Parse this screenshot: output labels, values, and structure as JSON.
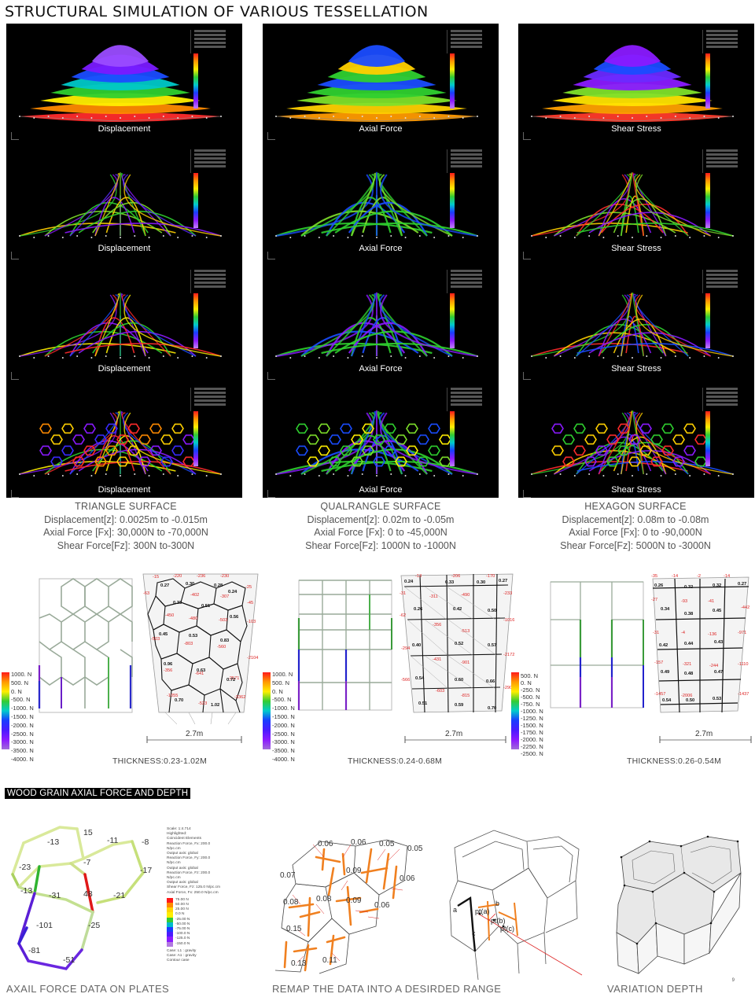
{
  "title": "STRUCTURAL SIMULATION OF VARIOUS TESSELLATION",
  "columns": [
    {
      "id": "triangle",
      "labels": [
        "Displacement",
        "Displacement",
        "Displacement",
        "Displacement"
      ],
      "surface_name": "TRIANGLE SURFACE",
      "displacement": "Displacement[z]: 0.0025m to -0.015m",
      "axial": "Axial Force [Fx]: 30,000N to -70,000N",
      "shear": "Shear Force[Fz]: 300N to-300N",
      "thickness": "THICKNESS:0.23-1.02M",
      "dimension": "2.7m",
      "legend": [
        "1000. N",
        "500. N",
        "0. N",
        "-500. N",
        "-1000. N",
        "-1500. N",
        "-2000. N",
        "-2500. N",
        "-3000. N",
        "-3500. N",
        "-4000. N"
      ]
    },
    {
      "id": "quad",
      "labels": [
        "Axial Force",
        "Axial Force",
        "Axial Force",
        "Axial Force"
      ],
      "surface_name": "QUALRANGLE SURFACE",
      "displacement": "Displacement[z]: 0.02m to -0.05m",
      "axial": "Axial Force [Fx]: 0 to -45,000N",
      "shear": "Shear Force[Fz]: 1000N to -1000N",
      "thickness": "THICKNESS:0.24-0.68M",
      "dimension": "2.7m",
      "legend": [
        "1000. N",
        "500. N",
        "0. N",
        "-500. N",
        "-1000. N",
        "-1500. N",
        "-2000. N",
        "-2500. N",
        "-3000. N",
        "-3500. N",
        "-4000. N"
      ]
    },
    {
      "id": "hexagon",
      "labels": [
        "Shear Stress",
        "Shear Stress",
        "Shear Stress",
        "Shear Stress"
      ],
      "surface_name": "HEXAGON SURFACE",
      "displacement": "Displacement[z]: 0.08m to -0.08m",
      "axial": "Axial Force [Fx]: 0 to -90,000N",
      "shear": "Shear Force[Fz]: 5000N to -3000N",
      "thickness": "THICKNESS:0.26-0.54M",
      "dimension": "2.7m",
      "legend": [
        "500. N",
        "0. N",
        "-250. N",
        "-500. N",
        "-750. N",
        "-1000. N",
        "-1250. N",
        "-1500. N",
        "-1750. N",
        "-2000. N",
        "-2250. N",
        "-2500. N"
      ]
    }
  ],
  "section_tag": "WOOD GRAIN AXIAL FORCE AND DEPTH",
  "axial_plate_values": [
    "-13",
    "15",
    "-11",
    "-8",
    "-23",
    "-7",
    "-17",
    "-13",
    "-31",
    "48",
    "-21",
    "-101",
    "-25",
    "-81",
    "-51"
  ],
  "axial_legend": {
    "header": [
      "Scale: 1:4.714",
      "Highlighted:",
      "Coincident Elements",
      "Reaction Force, Fx: 200.0 N/pc.cm",
      "Output axis: global",
      "Reaction Force, Fy: 200.0 N/pc.cm",
      "Output axis: global",
      "Reaction Force, Fz: 200.0 N/pc.cm",
      "Output axis: global",
      "Shear Force, Fz: 125.0 N/pc.cm",
      "Axial Force, Fx: 250.0 N/pc.cm"
    ],
    "values": [
      "75.00 N",
      "50.00 N",
      "25.00 N",
      "0.0 N",
      "-25.00 N",
      "-50.00 N",
      "-75.00 N",
      "-100.0 N",
      "-125.0 N",
      "-150.0 N"
    ],
    "cases": [
      "Case: L1 : gravity",
      "Case: A1 : gravity",
      "Contour case"
    ]
  },
  "remap_values": [
    "0.06",
    "0.06",
    "0.05",
    "0.05",
    "0.07",
    "0.09",
    "0.06",
    "0.08",
    "0.08",
    "0.09",
    "0.06",
    "0.15",
    "0.13",
    "0.11"
  ],
  "variation_labels": [
    "a",
    "b",
    "c",
    "pt(a)",
    "pt(b)",
    "pt(c)"
  ],
  "captions": [
    "AXAIL FORCE DATA ON PLATES",
    "REMAP THE DATA INTO A DESIRDED RANGE",
    "VARIATION DEPTH"
  ],
  "page_number": "9"
}
